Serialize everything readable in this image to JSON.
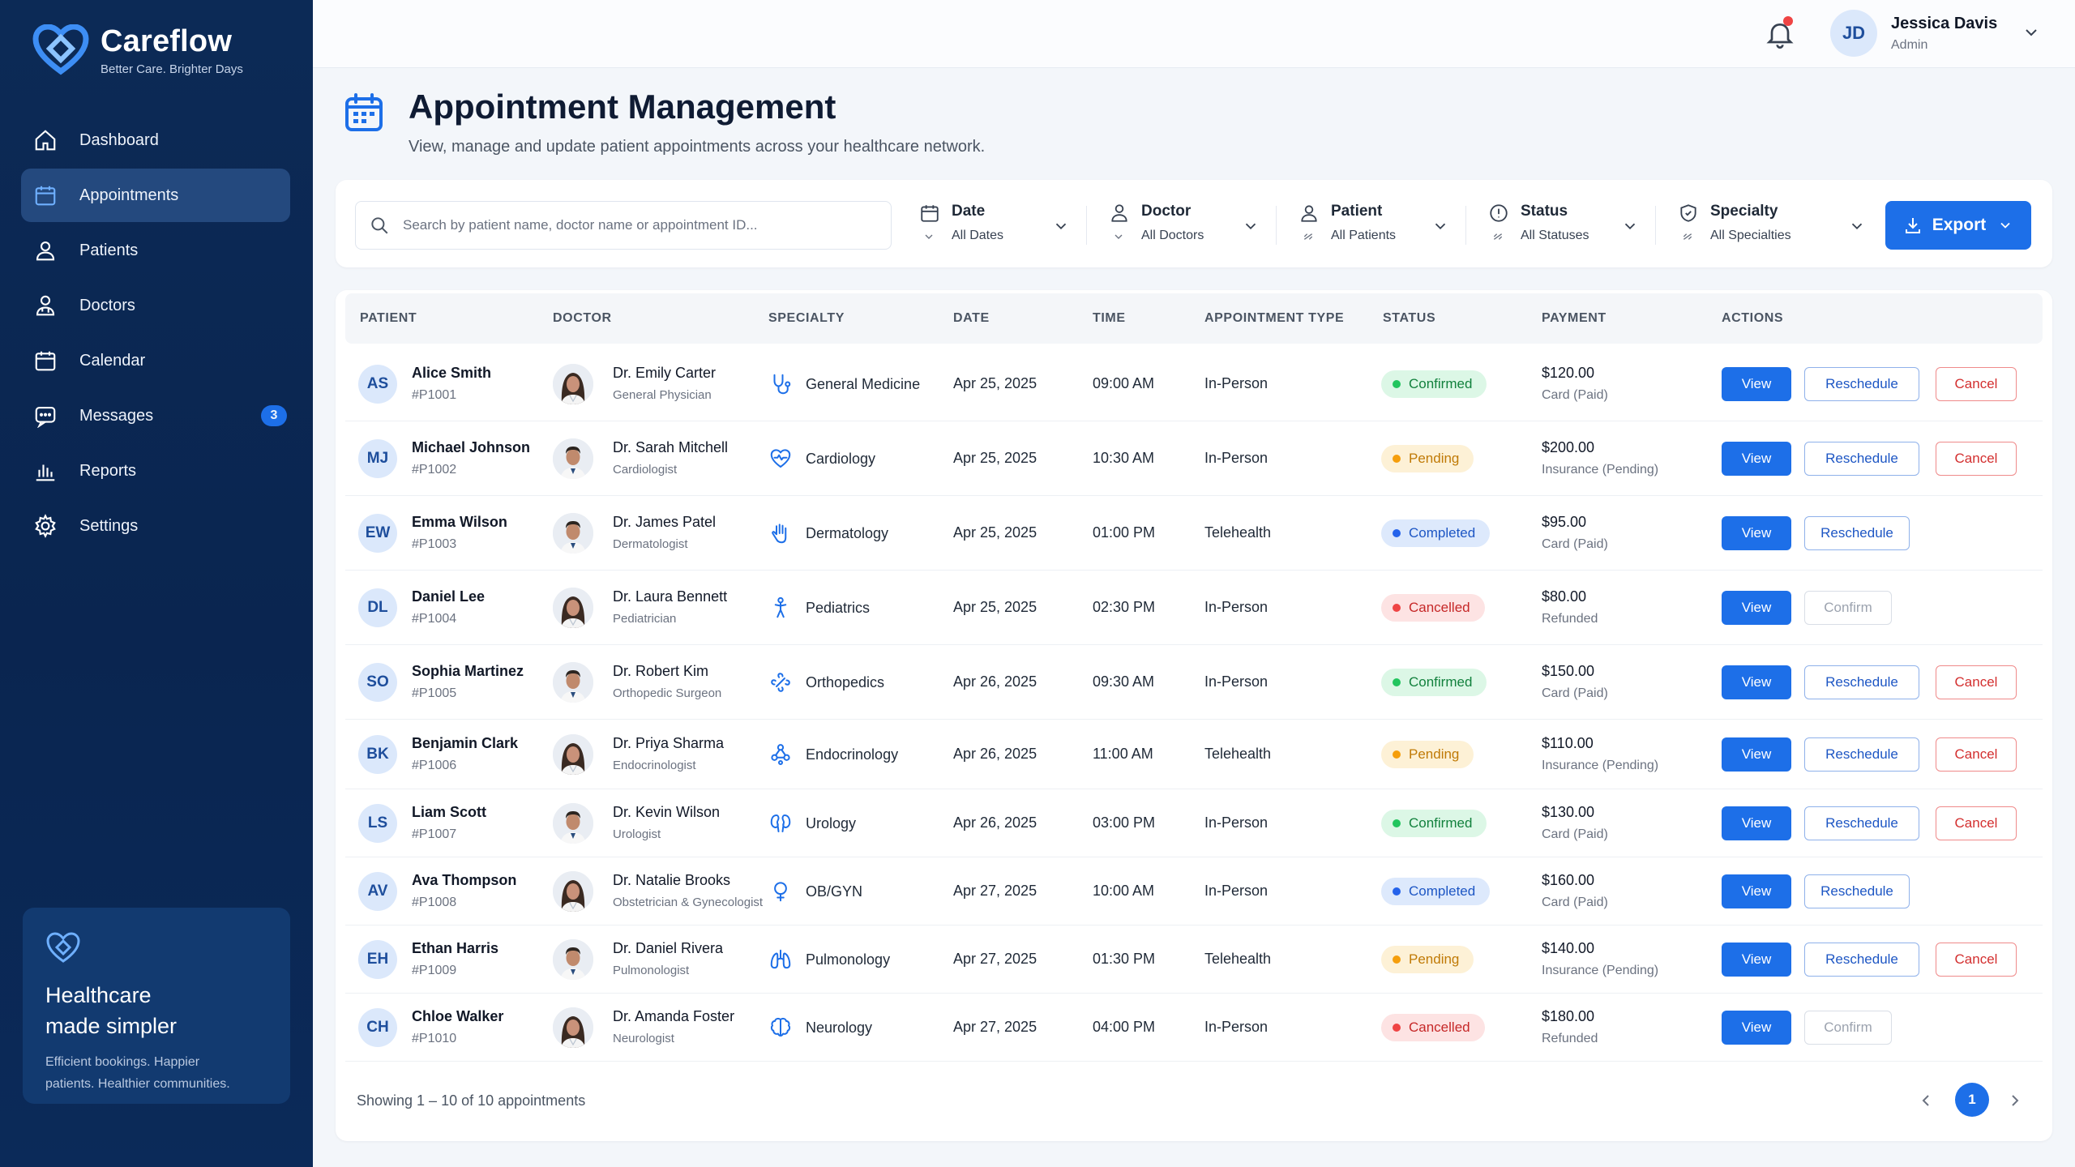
{
  "brand": {
    "name": "Careflow",
    "tagline": "Better Care. Brighter Days"
  },
  "sidebar": {
    "items": [
      {
        "label": "Dashboard",
        "icon": "home-icon"
      },
      {
        "label": "Appointments",
        "icon": "calendar-icon",
        "active": true
      },
      {
        "label": "Patients",
        "icon": "user-icon"
      },
      {
        "label": "Doctors",
        "icon": "doctor-icon"
      },
      {
        "label": "Calendar",
        "icon": "calendar-icon"
      },
      {
        "label": "Messages",
        "icon": "message-icon",
        "badge": "3"
      },
      {
        "label": "Reports",
        "icon": "bar-chart-icon"
      },
      {
        "label": "Settings",
        "icon": "gear-icon"
      }
    ],
    "promo": {
      "title_line1": "Healthcare",
      "title_line2": "made simpler",
      "text_line1": "Efficient bookings. Happier",
      "text_line2": "patients. Healthier communities."
    }
  },
  "topbar": {
    "user_initials": "JD",
    "user_name": "Jessica Davis",
    "user_role": "Admin"
  },
  "header": {
    "title": "Appointment Management",
    "subtitle": "View, manage and update patient appointments across your healthcare network."
  },
  "filters": {
    "search_placeholder": "Search by patient name, doctor name or appointment ID...",
    "items": [
      {
        "label": "Date",
        "value": "All Dates"
      },
      {
        "label": "Doctor",
        "value": "All Doctors"
      },
      {
        "label": "Patient",
        "value": "All Patients"
      },
      {
        "label": "Status",
        "value": "All Statuses"
      },
      {
        "label": "Specialty",
        "value": "All Specialties"
      }
    ],
    "export_label": "Export"
  },
  "table": {
    "columns": [
      "PATIENT",
      "DOCTOR",
      "SPECIALTY",
      "DATE",
      "TIME",
      "APPOINTMENT TYPE",
      "STATUS",
      "PAYMENT",
      "ACTIONS"
    ],
    "labels": {
      "view": "View",
      "reschedule": "Reschedule",
      "cancel": "Cancel",
      "confirm": "Confirm"
    },
    "rows": [
      {
        "initials": "AS",
        "patient": "Alice Smith",
        "pid": "#P1001",
        "doctor": "Dr. Emily Carter",
        "doctor_role": "General Physician",
        "doctor_gender": "f",
        "specialty": "General Medicine",
        "spec_icon": "stethoscope-icon",
        "date": "Apr 25, 2025",
        "time": "09:00 AM",
        "type": "In-Person",
        "status": "Confirmed",
        "amount": "$120.00",
        "payment": "Card (Paid)"
      },
      {
        "initials": "MJ",
        "patient": "Michael Johnson",
        "pid": "#P1002",
        "doctor": "Dr. Sarah Mitchell",
        "doctor_role": "Cardiologist",
        "doctor_gender": "m",
        "specialty": "Cardiology",
        "spec_icon": "heart-pulse-icon",
        "date": "Apr 25, 2025",
        "time": "10:30 AM",
        "type": "In-Person",
        "status": "Pending",
        "amount": "$200.00",
        "payment": "Insurance (Pending)"
      },
      {
        "initials": "EW",
        "patient": "Emma Wilson",
        "pid": "#P1003",
        "doctor": "Dr. James Patel",
        "doctor_role": "Dermatologist",
        "doctor_gender": "m",
        "specialty": "Dermatology",
        "spec_icon": "hand-icon",
        "date": "Apr 25, 2025",
        "time": "01:00 PM",
        "type": "Telehealth",
        "status": "Completed",
        "amount": "$95.00",
        "payment": "Card (Paid)"
      },
      {
        "initials": "DL",
        "patient": "Daniel Lee",
        "pid": "#P1004",
        "doctor": "Dr. Laura Bennett",
        "doctor_role": "Pediatrician",
        "doctor_gender": "f",
        "specialty": "Pediatrics",
        "spec_icon": "child-icon",
        "date": "Apr 25, 2025",
        "time": "02:30 PM",
        "type": "In-Person",
        "status": "Cancelled",
        "amount": "$80.00",
        "payment": "Refunded"
      },
      {
        "initials": "SO",
        "patient": "Sophia Martinez",
        "pid": "#P1005",
        "doctor": "Dr. Robert Kim",
        "doctor_role": "Orthopedic Surgeon",
        "doctor_gender": "m",
        "specialty": "Orthopedics",
        "spec_icon": "bone-icon",
        "date": "Apr 26, 2025",
        "time": "09:30 AM",
        "type": "In-Person",
        "status": "Confirmed",
        "amount": "$150.00",
        "payment": "Card (Paid)"
      },
      {
        "initials": "BK",
        "patient": "Benjamin Clark",
        "pid": "#P1006",
        "doctor": "Dr. Priya Sharma",
        "doctor_role": "Endocrinologist",
        "doctor_gender": "f",
        "specialty": "Endocrinology",
        "spec_icon": "molecule-icon",
        "date": "Apr 26, 2025",
        "time": "11:00 AM",
        "type": "Telehealth",
        "status": "Pending",
        "amount": "$110.00",
        "payment": "Insurance (Pending)"
      },
      {
        "initials": "LS",
        "patient": "Liam Scott",
        "pid": "#P1007",
        "doctor": "Dr. Kevin Wilson",
        "doctor_role": "Urologist",
        "doctor_gender": "m",
        "specialty": "Urology",
        "spec_icon": "kidney-icon",
        "date": "Apr 26, 2025",
        "time": "03:00 PM",
        "type": "In-Person",
        "status": "Confirmed",
        "amount": "$130.00",
        "payment": "Card (Paid)"
      },
      {
        "initials": "AV",
        "patient": "Ava Thompson",
        "pid": "#P1008",
        "doctor": "Dr. Natalie Brooks",
        "doctor_role": "Obstetrician & Gynecologist",
        "doctor_gender": "f",
        "specialty": "OB/GYN",
        "spec_icon": "female-icon",
        "date": "Apr 27, 2025",
        "time": "10:00 AM",
        "type": "In-Person",
        "status": "Completed",
        "amount": "$160.00",
        "payment": "Card (Paid)"
      },
      {
        "initials": "EH",
        "patient": "Ethan Harris",
        "pid": "#P1009",
        "doctor": "Dr. Daniel Rivera",
        "doctor_role": "Pulmonologist",
        "doctor_gender": "m",
        "specialty": "Pulmonology",
        "spec_icon": "lungs-icon",
        "date": "Apr 27, 2025",
        "time": "01:30 PM",
        "type": "Telehealth",
        "status": "Pending",
        "amount": "$140.00",
        "payment": "Insurance (Pending)"
      },
      {
        "initials": "CH",
        "patient": "Chloe Walker",
        "pid": "#P1010",
        "doctor": "Dr. Amanda Foster",
        "doctor_role": "Neurologist",
        "doctor_gender": "f",
        "specialty": "Neurology",
        "spec_icon": "brain-icon",
        "date": "Apr 27, 2025",
        "time": "04:00 PM",
        "type": "In-Person",
        "status": "Cancelled",
        "amount": "$180.00",
        "payment": "Refunded"
      }
    ]
  },
  "footer": {
    "showing": "Showing 1 – 10 of 10 appointments",
    "page": "1"
  }
}
